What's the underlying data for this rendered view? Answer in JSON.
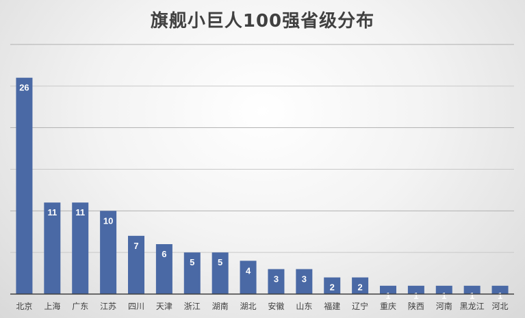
{
  "chart_data": {
    "type": "bar",
    "title": "旗舰小巨人100强省级分布",
    "categories": [
      "北京",
      "上海",
      "广东",
      "江苏",
      "四川",
      "天津",
      "浙江",
      "湖南",
      "湖北",
      "安徽",
      "山东",
      "福建",
      "辽宁",
      "重庆",
      "陕西",
      "河南",
      "黑龙江",
      "河北"
    ],
    "values": [
      26,
      11,
      11,
      10,
      7,
      6,
      5,
      5,
      4,
      3,
      3,
      2,
      2,
      1,
      1,
      1,
      1,
      1
    ],
    "ylim": [
      0,
      30
    ],
    "grid": true,
    "data_labels": true,
    "legend": "none",
    "bar_color": "#4a69a5"
  }
}
